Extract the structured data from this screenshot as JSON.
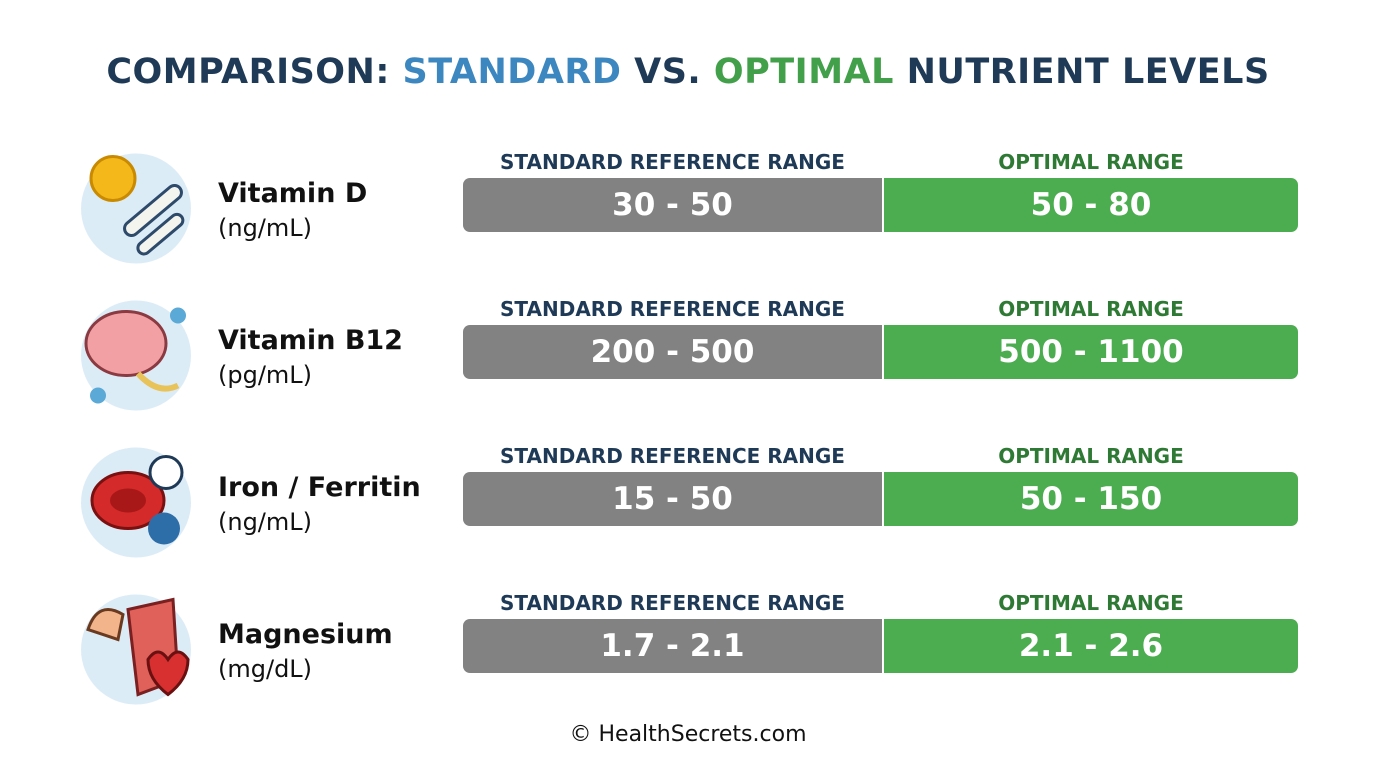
{
  "header": {
    "title": [
      "COMPARISON:",
      "STANDARD",
      "VS.",
      "OPTIMAL",
      "NUTRIENT LEVELS"
    ]
  },
  "rows": [
    {
      "name": "Vitamin D",
      "unit": "(ng/mL)",
      "standard_label": "STANDARD REFERENCE RANGE",
      "standard_range": "30 - 50",
      "optimal_label": "OPTIMAL RANGE",
      "optimal_range": "50 - 80"
    },
    {
      "name": "Vitamin B12",
      "unit": "(pg/mL)",
      "standard_label": "STANDARD REFERENCE RANGE",
      "standard_range": "200 - 500",
      "optimal_label": "OPTIMAL RANGE",
      "optimal_range": "500 - 1100"
    },
    {
      "name": "Iron / Ferritin",
      "unit": "(ng/mL)",
      "standard_label": "STANDARD REFERENCE RANGE",
      "standard_range": "15 - 50",
      "optimal_label": "OPTIMAL RANGE",
      "optimal_range": "50 - 150"
    },
    {
      "name": "Magnesium",
      "unit": "(mg/dL)",
      "standard_label": "STANDARD REFERENCE RANGE",
      "standard_range": "1.7 - 2.1",
      "optimal_label": "OPTIMAL RANGE",
      "optimal_range": "2.1 - 2.6"
    }
  ],
  "footer": "© HealthSecrets.com"
}
